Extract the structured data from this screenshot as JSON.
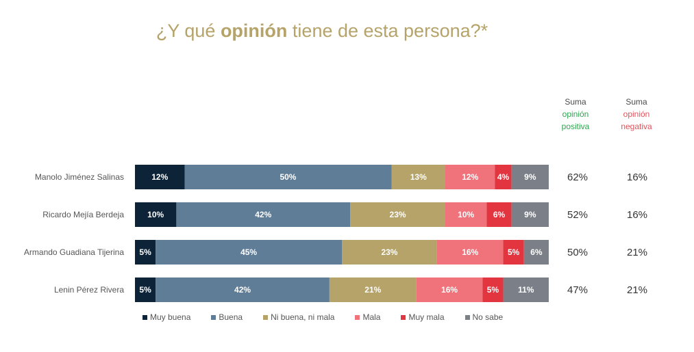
{
  "title": {
    "prefix": "¿Y qué",
    "bold": "opinión",
    "suffix": "tiene de esta persona?*"
  },
  "columns": {
    "positive": {
      "line1": "Suma",
      "line2": "opinión",
      "line3": "positiva"
    },
    "negative": {
      "line1": "Suma",
      "line2": "opinión",
      "line3": "negativa"
    }
  },
  "colors": {
    "muy_buena": "#0d2438",
    "buena": "#5f7d96",
    "ni_buena": "#b5a36a",
    "mala": "#f0727a",
    "muy_mala": "#e2353f",
    "no_sabe": "#7b8088",
    "positive_text": "#2aa64e",
    "negative_text": "#e2505a"
  },
  "chart_data": {
    "type": "bar",
    "orientation": "horizontal-stacked-100",
    "categories": [
      "Manolo Jiménez Salinas",
      "Ricardo Mejía Berdeja",
      "Armando Guadiana Tijerina",
      "Lenin Pérez Rivera"
    ],
    "series": [
      {
        "name": "Muy buena",
        "values": [
          12,
          10,
          5,
          5
        ]
      },
      {
        "name": "Buena",
        "values": [
          50,
          42,
          45,
          42
        ]
      },
      {
        "name": "Ni buena, ni mala",
        "values": [
          13,
          23,
          23,
          21
        ]
      },
      {
        "name": "Mala",
        "values": [
          12,
          10,
          16,
          16
        ]
      },
      {
        "name": "Muy mala",
        "values": [
          4,
          6,
          5,
          5
        ]
      },
      {
        "name": "No sabe",
        "values": [
          9,
          9,
          6,
          11
        ]
      }
    ],
    "positive_sum": [
      "62%",
      "52%",
      "50%",
      "47%"
    ],
    "negative_sum": [
      "16%",
      "16%",
      "21%",
      "21%"
    ],
    "legend_position": "bottom"
  }
}
